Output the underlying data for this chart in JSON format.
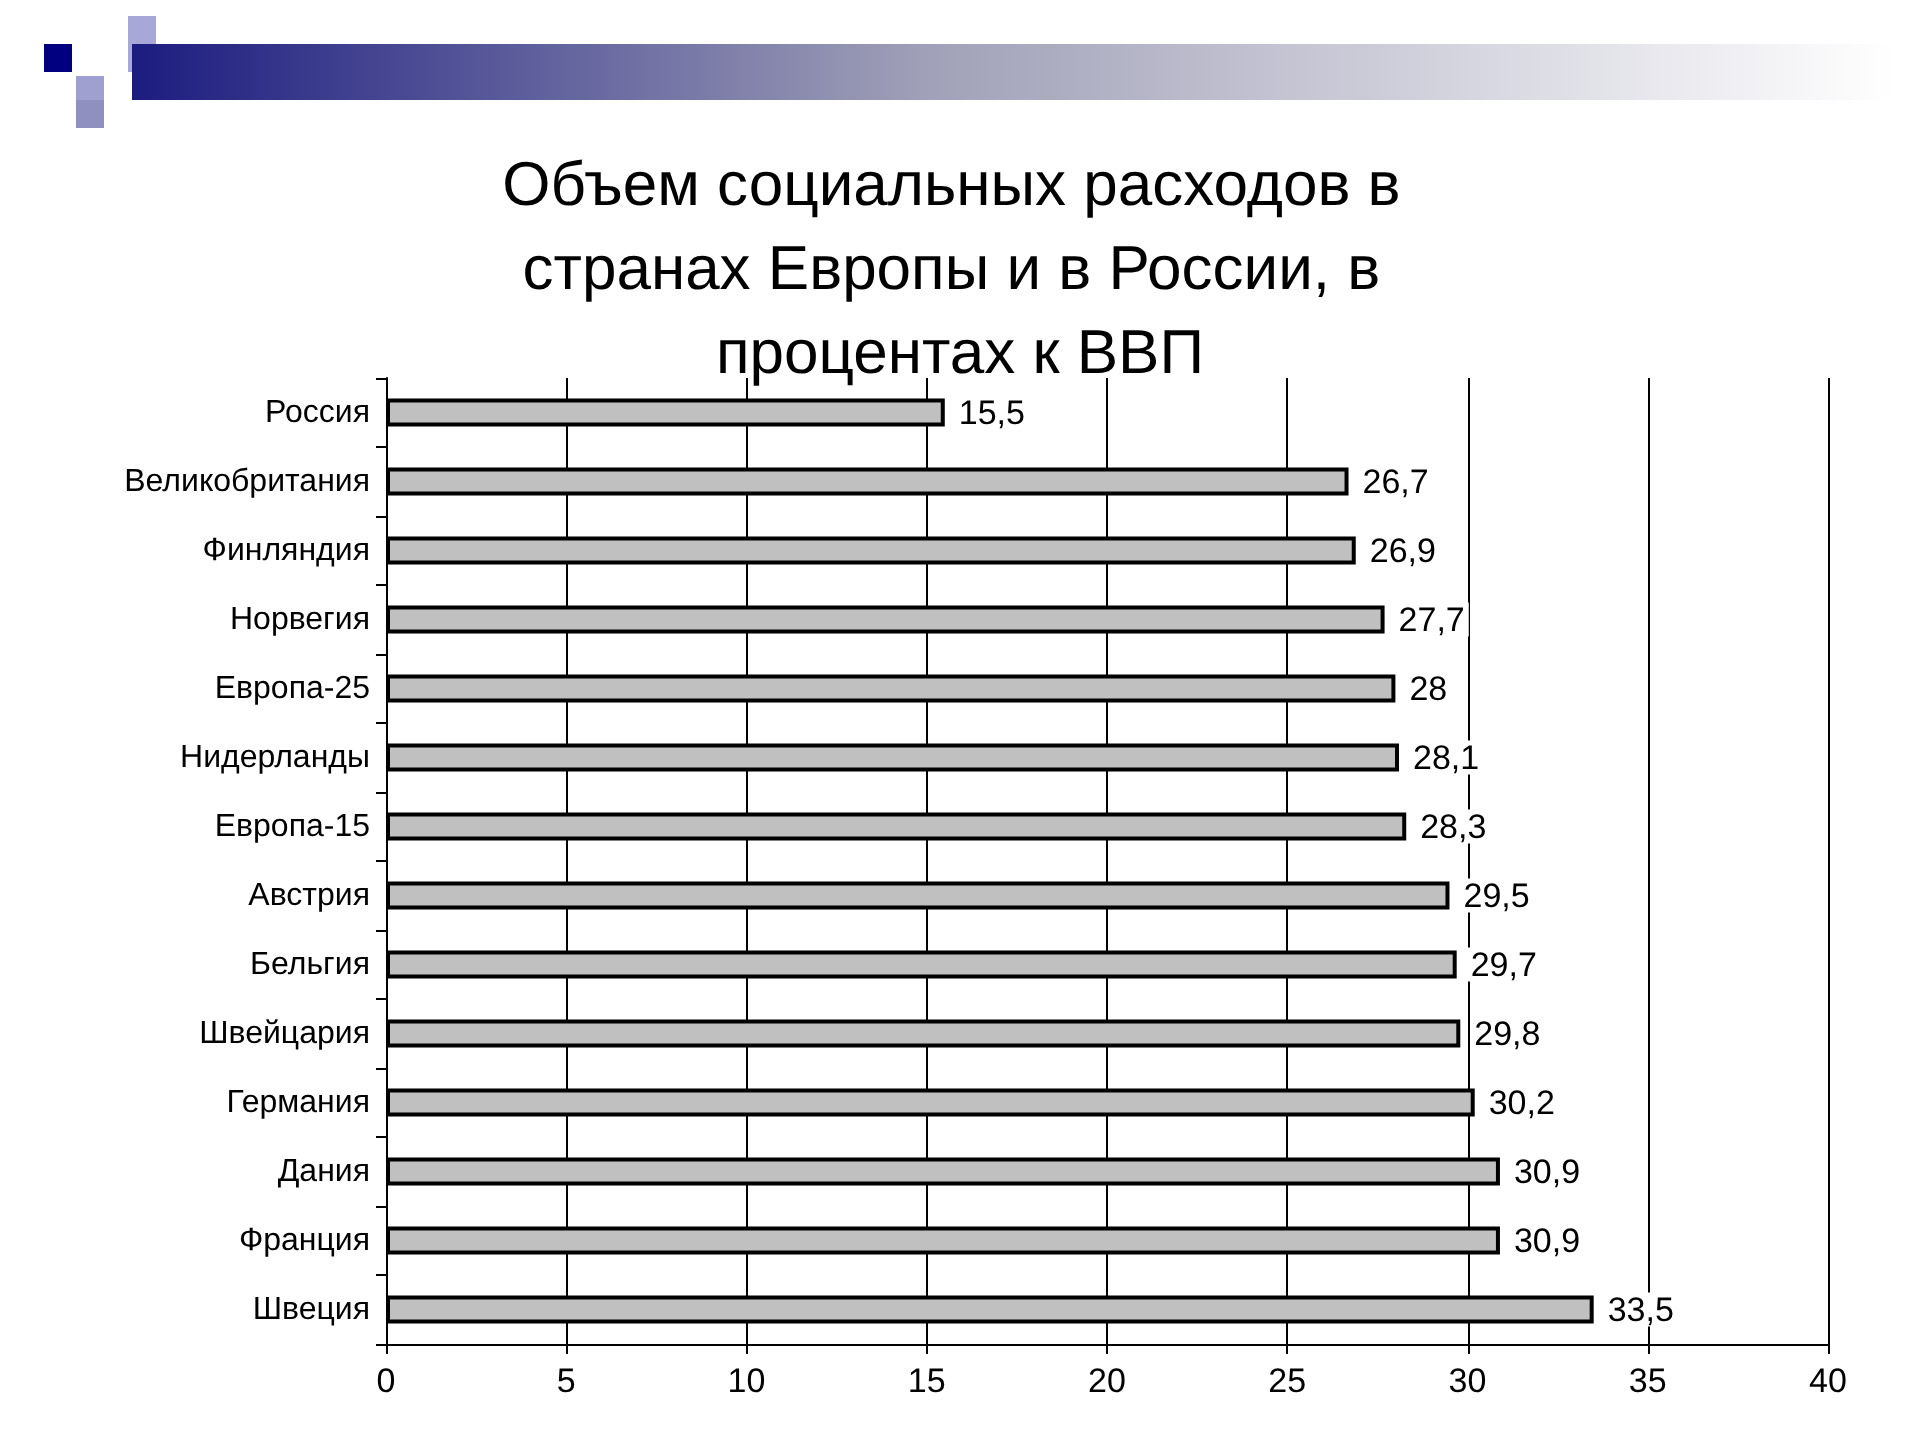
{
  "chart_data": {
    "type": "bar",
    "orientation": "horizontal",
    "title": "Объем социальных расходов в странах Европы и в России, в процентах к ВВП",
    "categories": [
      "Россия",
      "Великобритания",
      "Финляндия",
      "Норвегия",
      "Европа-25",
      "Нидерланды",
      "Европа-15",
      "Австрия",
      "Бельгия",
      "Швейцария",
      "Германия",
      "Дания",
      "Франция",
      "Швеция"
    ],
    "values": [
      15.5,
      26.7,
      26.9,
      27.7,
      28,
      28.1,
      28.3,
      29.5,
      29.7,
      29.8,
      30.2,
      30.9,
      30.9,
      33.5
    ],
    "value_labels": [
      "15,5",
      "26,7",
      "26,9",
      "27,7",
      "28",
      "28,1",
      "28,3",
      "29,5",
      "29,7",
      "29,8",
      "30,2",
      "30,9",
      "30,9",
      "33,5"
    ],
    "color": "#c0c0c0",
    "xlim": [
      0,
      40
    ],
    "xticks": [
      0,
      5,
      10,
      15,
      20,
      25,
      30,
      35,
      40
    ],
    "grid": "x"
  }
}
